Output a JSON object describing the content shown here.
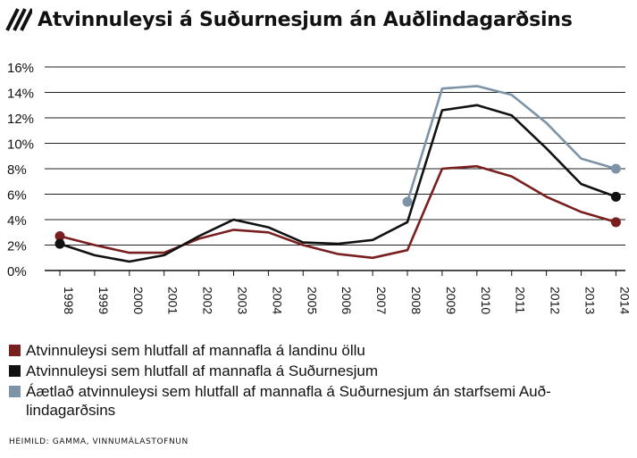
{
  "header": {
    "title": "Atvinnuleysi á Suðurnesjum án Auðlindagarðsins",
    "icon": "hatched-stripes-icon"
  },
  "chart_data": {
    "type": "line",
    "title": "Atvinnuleysi á Suðurnesjum án Auðlindagarðsins",
    "x": [
      "1998",
      "1999",
      "2000",
      "2001",
      "2002",
      "2003",
      "2004",
      "2005",
      "2006",
      "2007",
      "2008",
      "2009",
      "2010",
      "2011",
      "2012",
      "2013",
      "2014"
    ],
    "y_ticks": [
      "0%",
      "2%",
      "4%",
      "6%",
      "8%",
      "10%",
      "12%",
      "14%",
      "16%"
    ],
    "ylim": [
      0,
      16
    ],
    "grid": true,
    "series": [
      {
        "name": "Atvinnuleysi sem hlutfall af mannafla á landinu öllu",
        "color": "#7a1f1f",
        "points": [
          [
            "1998",
            2.7
          ],
          [
            "1999",
            2.0
          ],
          [
            "2000",
            1.4
          ],
          [
            "2001",
            1.4
          ],
          [
            "2002",
            2.5
          ],
          [
            "2003",
            3.2
          ],
          [
            "2004",
            3.0
          ],
          [
            "2005",
            2.0
          ],
          [
            "2006",
            1.3
          ],
          [
            "2007",
            1.0
          ],
          [
            "2008",
            1.6
          ],
          [
            "2009",
            8.0
          ],
          [
            "2010",
            8.2
          ],
          [
            "2011",
            7.4
          ],
          [
            "2012",
            5.8
          ],
          [
            "2013",
            4.6
          ],
          [
            "2014",
            3.8
          ]
        ]
      },
      {
        "name": "Atvinnuleysi sem hlutfall af mannafla á Suðurnesjum",
        "color": "#111111",
        "points": [
          [
            "1998",
            2.1
          ],
          [
            "1999",
            1.2
          ],
          [
            "2000",
            0.7
          ],
          [
            "2001",
            1.2
          ],
          [
            "2002",
            2.7
          ],
          [
            "2003",
            4.0
          ],
          [
            "2004",
            3.4
          ],
          [
            "2005",
            2.2
          ],
          [
            "2006",
            2.1
          ],
          [
            "2007",
            2.4
          ],
          [
            "2008",
            3.8
          ],
          [
            "2009",
            12.6
          ],
          [
            "2010",
            13.0
          ],
          [
            "2011",
            12.2
          ],
          [
            "2012",
            9.6
          ],
          [
            "2013",
            6.8
          ],
          [
            "2014",
            5.8
          ]
        ]
      },
      {
        "name": "Áætlað atvinnuleysi sem hlutfall af mannafla á Suðurnesjum án starfsemi Auðlindagarðsins",
        "color": "#7d93a8",
        "points": [
          [
            "2008",
            5.4
          ],
          [
            "2009",
            14.3
          ],
          [
            "2010",
            14.5
          ],
          [
            "2011",
            13.8
          ],
          [
            "2012",
            11.6
          ],
          [
            "2013",
            8.8
          ],
          [
            "2014",
            8.0
          ]
        ]
      }
    ]
  },
  "legend": [
    {
      "label": "Atvinnuleysi sem hlutfall af mannafla á landinu öllu",
      "color": "#7a1f1f"
    },
    {
      "label": "Atvinnuleysi sem hlutfall af mannafla á Suðurnesjum",
      "color": "#111111"
    },
    {
      "label": "Áætlað atvinnuleysi sem hlutfall af mannafla á Suðurnesjum án starfsemi Auð-lindagarðsins",
      "color": "#7d93a8"
    }
  ],
  "source": "HEIMILD: GAMMA, VINNUMÁLASTOFNUN"
}
